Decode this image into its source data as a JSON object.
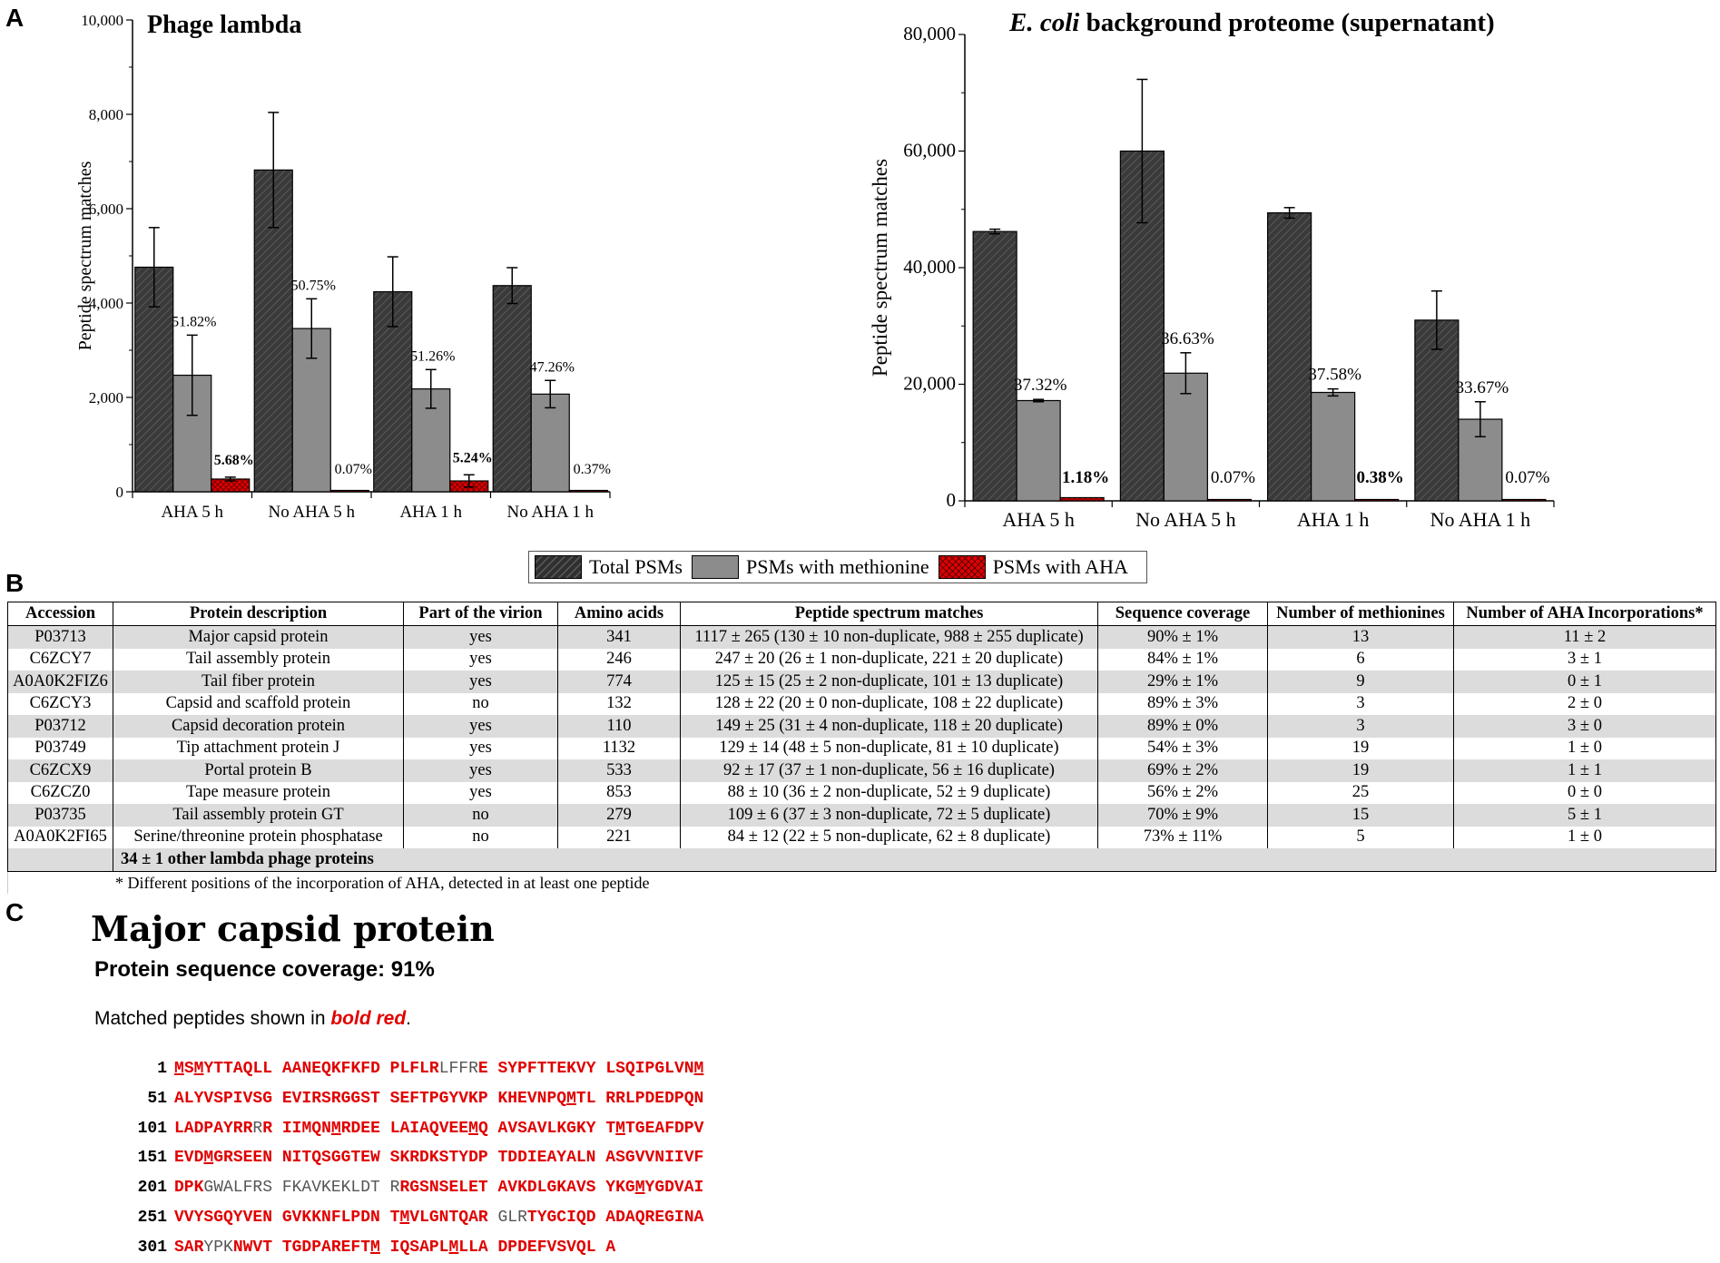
{
  "panel_labels": {
    "a": "A",
    "b": "B",
    "c": "C"
  },
  "chart_data": [
    {
      "type": "bar",
      "title": "Phage  lambda",
      "ylabel": "Peptide spectrum matches",
      "xlabel": "",
      "ylim": [
        0,
        10000
      ],
      "yticks": [
        0,
        2000,
        4000,
        6000,
        8000,
        10000
      ],
      "ytick_labels": [
        "0",
        "2,000",
        "4,000",
        "6,000",
        "8,000",
        "10,000"
      ],
      "categories": [
        "AHA 5 h",
        "No AHA 5 h",
        "AHA 1 h",
        "No AHA 1 h"
      ],
      "series": [
        {
          "name": "Total PSMs",
          "values": [
            4760,
            6820,
            4240,
            4370
          ],
          "errors": [
            840,
            1220,
            740,
            380
          ]
        },
        {
          "name": "PSMs with methionine",
          "values": [
            2470,
            3460,
            2180,
            2070
          ],
          "errors": [
            850,
            630,
            410,
            290
          ]
        },
        {
          "name": "PSMs with AHA",
          "values": [
            270,
            5,
            230,
            15
          ],
          "errors": [
            40,
            0,
            130,
            0
          ]
        }
      ],
      "annotations": {
        "methionine_pct": [
          "51.82%",
          "50.75%",
          "51.26%",
          "47.26%"
        ],
        "aha_pct": [
          "5.68%",
          "0.07%",
          "5.24%",
          "0.37%"
        ],
        "aha_bold": [
          true,
          false,
          true,
          false
        ]
      },
      "colors": {
        "total": "#3a3a3a",
        "met": "#8c8c8c",
        "aha": "#e00000"
      }
    },
    {
      "type": "bar",
      "title_italic": "E. coli",
      "title_rest": " background proteome (supernatant)",
      "ylabel": "Peptide spectrum matches",
      "xlabel": "",
      "ylim": [
        0,
        80000
      ],
      "yticks": [
        0,
        20000,
        40000,
        60000,
        80000
      ],
      "ytick_labels": [
        "0",
        "20,000",
        "40,000",
        "60,000",
        "80,000"
      ],
      "categories": [
        "AHA 5 h",
        "No AHA 5 h",
        "AHA 1 h",
        "No AHA 1 h"
      ],
      "series": [
        {
          "name": "Total PSMs",
          "values": [
            46200,
            60000,
            49400,
            31000
          ],
          "errors": [
            400,
            12300,
            900,
            5000
          ]
        },
        {
          "name": "PSMs with methionine",
          "values": [
            17200,
            21900,
            18600,
            14000
          ],
          "errors": [
            200,
            3500,
            600,
            3000
          ]
        },
        {
          "name": "PSMs with AHA",
          "values": [
            550,
            40,
            190,
            20
          ],
          "errors": [
            0,
            0,
            0,
            0
          ]
        }
      ],
      "annotations": {
        "methionine_pct": [
          "37.32%",
          "36.63%",
          "37.58%",
          "33.67%"
        ],
        "aha_pct": [
          "1.18%",
          "0.07%",
          "0.38%",
          "0.07%"
        ],
        "aha_bold": [
          true,
          false,
          true,
          false
        ]
      },
      "colors": {
        "total": "#3a3a3a",
        "met": "#8c8c8c",
        "aha": "#e00000"
      }
    }
  ],
  "legend": {
    "total": "Total PSMs",
    "met": "PSMs with methionine",
    "aha": "PSMs with AHA"
  },
  "table": {
    "headers": [
      "Accession",
      "Protein description",
      "Part of the virion",
      "Amino acids",
      "Peptide spectrum matches",
      "Sequence coverage",
      "Number of methionines",
      "Number of AHA Incorporations*"
    ],
    "rows": [
      [
        "P03713",
        "Major capsid protein",
        "yes",
        "341",
        "1117 ± 265 (130 ± 10 non-duplicate, 988 ± 255 duplicate)",
        "90% ± 1%",
        "13",
        "11 ± 2"
      ],
      [
        "C6ZCY7",
        "Tail assembly protein",
        "yes",
        "246",
        "247 ± 20 (26 ± 1 non-duplicate, 221 ± 20 duplicate)",
        "84% ± 1%",
        "6",
        "3 ± 1"
      ],
      [
        "A0A0K2FIZ6",
        "Tail fiber protein",
        "yes",
        "774",
        "125 ± 15 (25 ± 2 non-duplicate, 101 ± 13 duplicate)",
        "29% ± 1%",
        "9",
        "0 ± 1"
      ],
      [
        "C6ZCY3",
        "Capsid and scaffold protein",
        "no",
        "132",
        "128 ± 22 (20 ± 0 non-duplicate, 108 ± 22 duplicate)",
        "89% ± 3%",
        "3",
        "2 ± 0"
      ],
      [
        "P03712",
        "Capsid decoration protein",
        "yes",
        "110",
        "149  ± 25 (31 ± 4 non-duplicate, 118 ± 20 duplicate)",
        "89% ± 0%",
        "3",
        "3 ± 0"
      ],
      [
        "P03749",
        "Tip attachment protein J",
        "yes",
        "1132",
        "129 ± 14 (48 ± 5 non-duplicate, 81 ± 10 duplicate)",
        "54% ± 3%",
        "19",
        "1 ± 0"
      ],
      [
        "C6ZCX9",
        "Portal protein B",
        "yes",
        "533",
        "92 ± 17 (37 ± 1  non-duplicate, 56 ± 16 duplicate)",
        "69% ± 2%",
        "19",
        "1 ± 1"
      ],
      [
        "C6ZCZ0",
        "Tape measure protein",
        "yes",
        "853",
        "88 ± 10 (36 ± 2 non-duplicate, 52 ± 9 duplicate)",
        "56% ± 2%",
        "25",
        "0 ± 0"
      ],
      [
        "P03735",
        "Tail assembly protein GT",
        "no",
        "279",
        "109 ± 6 (37 ± 3 non-duplicate, 72 ± 5 duplicate)",
        "70% ± 9%",
        "15",
        "5 ± 1"
      ],
      [
        "A0A0K2FI65",
        "Serine/threonine protein phosphatase",
        "no",
        "221",
        "84 ± 12 (22 ± 5 non-duplicate, 62 ± 8 duplicate)",
        "73% ± 11%",
        "5",
        "1 ± 0"
      ]
    ],
    "other_row": "34 ± 1 other lambda phage proteins",
    "footnote": "* Different positions of the incorporation of AHA, detected in at least one peptide"
  },
  "section_c": {
    "title": "Major capsid protein",
    "coverage": "Protein sequence coverage: 91%",
    "note_prefix": "Matched peptides shown in ",
    "note_highlight": "bold red",
    "note_suffix": ".",
    "sequence_lines": [
      {
        "start": "1",
        "segments": [
          [
            "r",
            "M",
            1
          ],
          [
            "r",
            "S",
            0
          ],
          [
            "r",
            "M",
            1
          ],
          [
            "r",
            "YTTAQLL AANEQKFKFD PLFLR",
            0
          ],
          [
            "g",
            "LFFR",
            0
          ],
          [
            "r",
            "E SYPFTTEKVY LSQIPGLVN",
            0
          ],
          [
            "r",
            "M",
            1
          ]
        ]
      },
      {
        "start": "51",
        "segments": [
          [
            "r",
            "ALYVSPIVSG EVIRSRGGST SEFTPGYVKP KHEVNPQ",
            0
          ],
          [
            "r",
            "M",
            1
          ],
          [
            "r",
            "TL RRLPDEDPQN",
            0
          ]
        ]
      },
      {
        "start": "101",
        "segments": [
          [
            "r",
            "LADPAYRR",
            0
          ],
          [
            "g",
            "R",
            0
          ],
          [
            "r",
            "R IIM",
            0
          ],
          [
            "r",
            "Q",
            0
          ],
          [
            "r",
            "N",
            0
          ],
          [
            "r",
            "M",
            1
          ],
          [
            "r",
            "RDEE LAIAQVEE",
            0
          ],
          [
            "r",
            "M",
            1
          ],
          [
            "r",
            "Q AVSAVLKGKY T",
            0
          ],
          [
            "r",
            "M",
            1
          ],
          [
            "r",
            "TGEAFDPV",
            0
          ]
        ]
      },
      {
        "start": "151",
        "segments": [
          [
            "r",
            "EVD",
            0
          ],
          [
            "r",
            "M",
            1
          ],
          [
            "r",
            "GRSEEN NITQSGGTEW SKRDKSTYDP TDDIEAYALN ASGVVNIIVF",
            0
          ]
        ]
      },
      {
        "start": "201",
        "segments": [
          [
            "r",
            "DPK",
            0
          ],
          [
            "g",
            "GWALFRS FKAVKEKLDT R",
            0
          ],
          [
            "r",
            "RGSNSELET AVKDLGKAVS YKG",
            0
          ],
          [
            "r",
            "M",
            1
          ],
          [
            "r",
            "YGDVAI",
            0
          ]
        ]
      },
      {
        "start": "251",
        "segments": [
          [
            "r",
            "VVYSGQYVEN GVKKNFLPDN T",
            0
          ],
          [
            "r",
            "M",
            1
          ],
          [
            "r",
            "VLGNTQAR ",
            0
          ],
          [
            "g",
            "GLR",
            0
          ],
          [
            "r",
            "TYGCIQD ADAQREGINA",
            0
          ]
        ]
      },
      {
        "start": "301",
        "segments": [
          [
            "r",
            "SAR",
            0
          ],
          [
            "g",
            "YPK",
            0
          ],
          [
            "r",
            "NWVT TGDPAREFT",
            0
          ],
          [
            "r",
            "M",
            1
          ],
          [
            "r",
            " IQSAPL",
            0
          ],
          [
            "r",
            "M",
            1
          ],
          [
            "r",
            "LLA DPDEFVSVQL A",
            0
          ]
        ]
      }
    ]
  }
}
